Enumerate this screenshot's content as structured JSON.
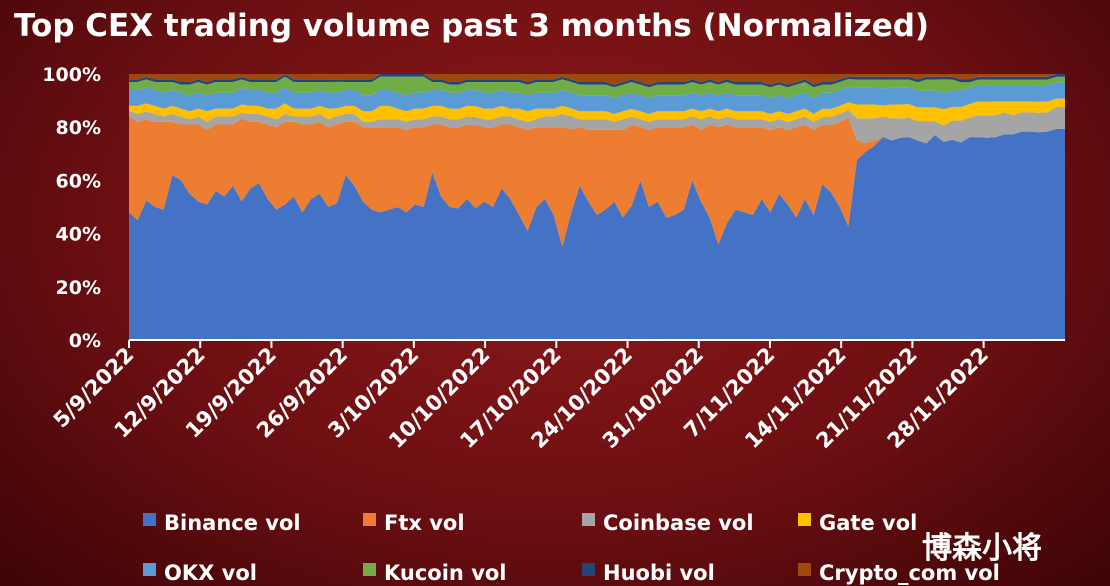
{
  "chart_data": {
    "type": "area",
    "stacked": true,
    "normalized": true,
    "title": "Top CEX trading volume past 3 months (Normalized)",
    "ylim": [
      0,
      100
    ],
    "y_ticks": [
      "0%",
      "20%",
      "40%",
      "60%",
      "80%",
      "100%"
    ],
    "x_ticks": [
      "5/9/2022",
      "12/9/2022",
      "19/9/2022",
      "26/9/2022",
      "3/10/2022",
      "10/10/2022",
      "17/10/2022",
      "24/10/2022",
      "31/10/2022",
      "7/11/2022",
      "14/11/2022",
      "21/11/2022",
      "28/11/2022"
    ],
    "x_days": 92,
    "legend_position": "bottom",
    "background": "#7a1418",
    "series": [
      {
        "name": "Binance vol",
        "color": "#4472c4",
        "values": [
          48,
          45,
          52,
          50,
          49,
          62,
          60,
          55,
          52,
          51,
          56,
          54,
          58,
          50,
          57,
          59,
          53,
          49,
          51,
          54,
          48,
          53,
          55,
          50,
          52,
          62,
          58,
          52,
          49,
          48,
          49,
          50,
          48,
          51,
          50,
          63,
          54,
          50,
          49,
          53,
          49,
          52,
          50,
          57,
          53,
          47,
          41,
          50,
          53,
          47,
          35,
          48,
          58,
          52,
          47,
          49,
          52,
          46,
          50,
          60,
          50,
          52,
          46,
          47,
          49,
          60,
          52,
          46,
          36,
          44,
          49,
          48,
          47,
          53,
          48,
          55,
          51,
          46,
          53,
          47,
          58,
          55,
          50,
          44,
          65,
          68,
          70,
          71,
          72,
          73,
          74,
          72,
          71,
          74,
          73,
          73,
          72,
          74,
          74,
          73,
          74,
          75,
          75,
          76,
          76,
          75,
          76,
          77,
          77
        ]
      },
      {
        "name": "Ftx vol",
        "color": "#ed7d31",
        "values": [
          36,
          37,
          30,
          32,
          33,
          20,
          21,
          26,
          29,
          28,
          25,
          27,
          23,
          30,
          25,
          23,
          28,
          31,
          31,
          28,
          33,
          28,
          27,
          30,
          30,
          20,
          24,
          28,
          31,
          32,
          31,
          30,
          31,
          29,
          30,
          18,
          27,
          30,
          30,
          28,
          31,
          28,
          30,
          24,
          28,
          33,
          38,
          30,
          27,
          33,
          45,
          32,
          22,
          27,
          32,
          30,
          27,
          33,
          30,
          20,
          29,
          28,
          34,
          33,
          31,
          21,
          27,
          35,
          44,
          37,
          31,
          32,
          33,
          27,
          31,
          25,
          28,
          34,
          28,
          32,
          22,
          25,
          32,
          42,
          7,
          3,
          2,
          0,
          0,
          0,
          0,
          0,
          0,
          0,
          0,
          0,
          0,
          0,
          0,
          0,
          0,
          0,
          0,
          0,
          0,
          0,
          0,
          0,
          0
        ]
      },
      {
        "name": "Coinbase vol",
        "color": "#a5a5a5",
        "values": [
          2,
          3,
          3,
          3,
          2,
          3,
          3,
          2,
          3,
          3,
          3,
          3,
          3,
          2,
          3,
          3,
          3,
          3,
          3,
          2,
          3,
          3,
          3,
          3,
          3,
          3,
          3,
          2,
          2,
          3,
          3,
          3,
          3,
          3,
          3,
          3,
          3,
          3,
          3,
          3,
          3,
          3,
          3,
          3,
          3,
          3,
          3,
          3,
          4,
          4,
          5,
          5,
          3,
          4,
          4,
          4,
          3,
          4,
          3,
          3,
          3,
          3,
          3,
          3,
          3,
          3,
          4,
          3,
          3,
          3,
          3,
          3,
          3,
          3,
          3,
          3,
          3,
          3,
          3,
          3,
          3,
          3,
          3,
          3,
          8,
          9,
          8,
          7,
          8,
          7,
          7,
          7,
          8,
          5,
          6,
          7,
          8,
          7,
          8,
          8,
          8,
          8,
          7,
          7,
          7,
          7,
          7,
          8,
          8
        ]
      },
      {
        "name": "Gate vol",
        "color": "#ffc000",
        "values": [
          2,
          3,
          3,
          3,
          3,
          3,
          3,
          3,
          3,
          4,
          3,
          3,
          3,
          3,
          3,
          3,
          3,
          4,
          4,
          3,
          3,
          3,
          3,
          4,
          3,
          3,
          3,
          4,
          4,
          5,
          5,
          4,
          4,
          4,
          4,
          4,
          4,
          4,
          4,
          4,
          4,
          4,
          4,
          4,
          3,
          4,
          4,
          4,
          3,
          3,
          3,
          3,
          3,
          3,
          3,
          3,
          3,
          3,
          3,
          3,
          3,
          3,
          3,
          3,
          3,
          3,
          3,
          3,
          3,
          3,
          3,
          3,
          3,
          3,
          3,
          3,
          3,
          3,
          3,
          3,
          3,
          3,
          3,
          3,
          5,
          5,
          5,
          4,
          5,
          5,
          5,
          5,
          5,
          5,
          6,
          5,
          5,
          5,
          5,
          5,
          5,
          4,
          5,
          4,
          4,
          4,
          4,
          3,
          3
        ]
      },
      {
        "name": "OKX vol",
        "color": "#5b9bd5",
        "values": [
          6,
          6,
          6,
          6,
          6,
          6,
          6,
          6,
          6,
          6,
          6,
          6,
          6,
          6,
          6,
          6,
          6,
          6,
          6,
          6,
          6,
          6,
          6,
          6,
          6,
          6,
          6,
          6,
          6,
          6,
          6,
          6,
          6,
          6,
          6,
          6,
          6,
          6,
          6,
          6,
          6,
          6,
          6,
          6,
          6,
          6,
          6,
          6,
          6,
          6,
          6,
          6,
          6,
          6,
          6,
          6,
          6,
          6,
          6,
          6,
          6,
          6,
          6,
          6,
          6,
          6,
          6,
          6,
          6,
          6,
          6,
          6,
          6,
          6,
          6,
          6,
          6,
          6,
          6,
          6,
          6,
          6,
          6,
          6,
          6,
          6,
          6,
          6,
          6,
          6,
          6,
          6,
          6,
          6,
          6,
          6,
          6,
          6,
          6,
          6,
          6,
          6,
          6,
          6,
          6,
          6,
          6,
          6,
          6
        ]
      },
      {
        "name": "Kucoin vol",
        "color": "#70ad47",
        "values": [
          3,
          3,
          3,
          3,
          4,
          3,
          3,
          4,
          4,
          4,
          4,
          4,
          4,
          3,
          3,
          3,
          4,
          4,
          4,
          4,
          4,
          4,
          3,
          4,
          4,
          3,
          3,
          5,
          5,
          5,
          5,
          6,
          7,
          6,
          6,
          3,
          3,
          3,
          3,
          3,
          3,
          4,
          4,
          3,
          4,
          4,
          4,
          4,
          4,
          4,
          4,
          4,
          4,
          4,
          4,
          4,
          4,
          4,
          4,
          4,
          4,
          4,
          4,
          4,
          4,
          4,
          4,
          4,
          4,
          4,
          4,
          4,
          4,
          4,
          4,
          4,
          4,
          4,
          4,
          4,
          3,
          3,
          3,
          3,
          3,
          3,
          3,
          3,
          3,
          3,
          3,
          3,
          4,
          4,
          5,
          4,
          3,
          2,
          2,
          2,
          2,
          2,
          2,
          2,
          2,
          2,
          2,
          2,
          2
        ]
      },
      {
        "name": "Huobi vol",
        "color": "#264478",
        "values": [
          1,
          1,
          1,
          1,
          1,
          1,
          1,
          1,
          1,
          1,
          1,
          1,
          1,
          1,
          1,
          1,
          1,
          1,
          1,
          1,
          1,
          1,
          1,
          1,
          1,
          1,
          1,
          1,
          1,
          1,
          1,
          1,
          1,
          1,
          1,
          1,
          1,
          1,
          1,
          1,
          1,
          1,
          1,
          1,
          1,
          1,
          1,
          1,
          1,
          1,
          1,
          1,
          1,
          1,
          1,
          1,
          1,
          1,
          1,
          1,
          1,
          1,
          1,
          1,
          1,
          1,
          1,
          1,
          1,
          1,
          1,
          1,
          1,
          1,
          1,
          1,
          1,
          1,
          1,
          1,
          1,
          1,
          1,
          1,
          1,
          1,
          1,
          1,
          1,
          1,
          1,
          1,
          1,
          1,
          1,
          1,
          1,
          1,
          1,
          1,
          1,
          1,
          1,
          1,
          1,
          1,
          1,
          1,
          1
        ]
      },
      {
        "name": "Crypto_com vol",
        "color": "#9e480e",
        "values": [
          2,
          2,
          1,
          2,
          2,
          2,
          3,
          3,
          2,
          3,
          2,
          2,
          2,
          1,
          2,
          2,
          2,
          2,
          0,
          2,
          2,
          2,
          2,
          2,
          2,
          2,
          2,
          2,
          2,
          0,
          0,
          0,
          0,
          0,
          0,
          2,
          2,
          3,
          3,
          2,
          2,
          2,
          2,
          2,
          2,
          2,
          3,
          2,
          2,
          2,
          1,
          2,
          3,
          3,
          3,
          3,
          4,
          3,
          2,
          3,
          4,
          3,
          3,
          3,
          3,
          2,
          3,
          2,
          3,
          2,
          3,
          3,
          3,
          3,
          4,
          3,
          4,
          3,
          2,
          4,
          3,
          3,
          2,
          1,
          1,
          1,
          1,
          1,
          1,
          1,
          1,
          2,
          1,
          1,
          1,
          1,
          2,
          2,
          1,
          1,
          1,
          1,
          1,
          1,
          1,
          1,
          1,
          0,
          0
        ]
      }
    ]
  },
  "watermark": "博森小将"
}
